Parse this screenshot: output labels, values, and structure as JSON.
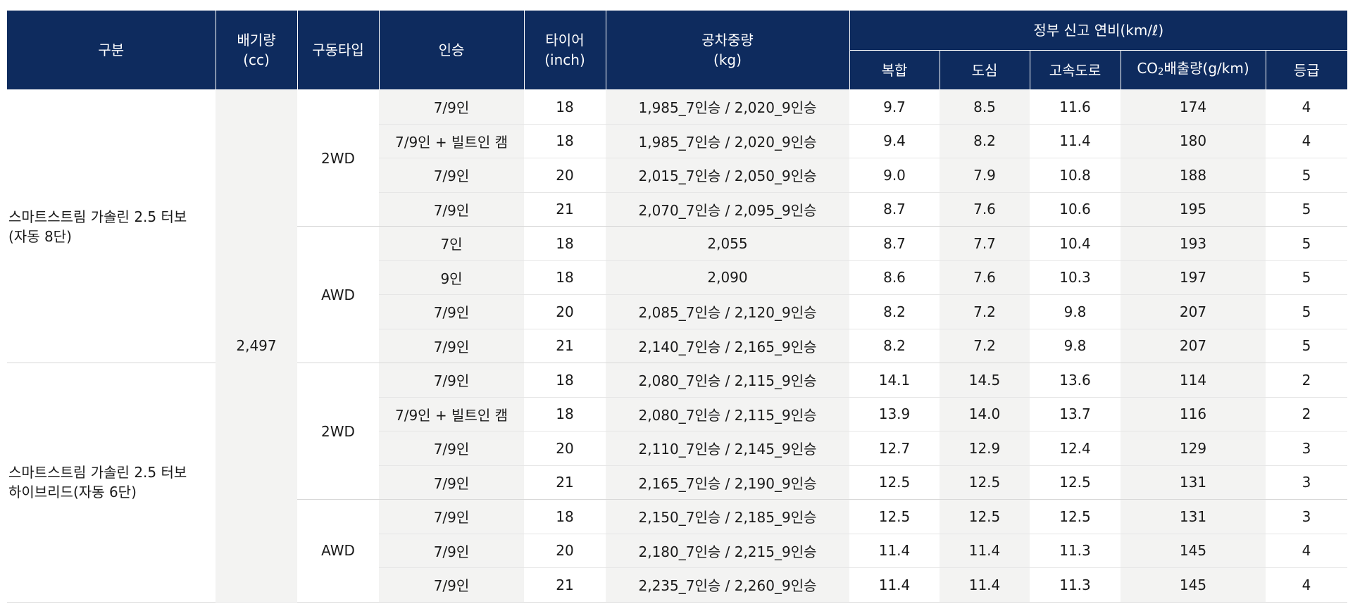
{
  "header": {
    "category": "구분",
    "displacement": "배기량\n(cc)",
    "drive": "구동타입",
    "seats": "인승",
    "tire": "타이어\n(inch)",
    "weight": "공차중량\n(kg)",
    "efficiency_group": "정부 신고 연비(km/ℓ)",
    "combined": "복합",
    "city": "도심",
    "highway": "고속도로",
    "co2_prefix": "CO",
    "co2_sub": "2",
    "co2_suffix": "배출량(g/km)",
    "grade": "등급"
  },
  "displacement_value": "2,497",
  "groups": [
    {
      "category": "스마트스트림 가솔린 2.5 터보\n(자동 8단)",
      "drives": [
        {
          "drive": "2WD",
          "rows": [
            {
              "seats": "7/9인",
              "tire": "18",
              "weight": "1,985_7인승 / 2,020_9인승",
              "combined": "9.7",
              "city": "8.5",
              "highway": "11.6",
              "co2": "174",
              "grade": "4"
            },
            {
              "seats": "7/9인 + 빌트인 캠",
              "tire": "18",
              "weight": "1,985_7인승 / 2,020_9인승",
              "combined": "9.4",
              "city": "8.2",
              "highway": "11.4",
              "co2": "180",
              "grade": "4"
            },
            {
              "seats": "7/9인",
              "tire": "20",
              "weight": "2,015_7인승 / 2,050_9인승",
              "combined": "9.0",
              "city": "7.9",
              "highway": "10.8",
              "co2": "188",
              "grade": "5"
            },
            {
              "seats": "7/9인",
              "tire": "21",
              "weight": "2,070_7인승 / 2,095_9인승",
              "combined": "8.7",
              "city": "7.6",
              "highway": "10.6",
              "co2": "195",
              "grade": "5"
            }
          ]
        },
        {
          "drive": "AWD",
          "rows": [
            {
              "seats": "7인",
              "tire": "18",
              "weight": "2,055",
              "combined": "8.7",
              "city": "7.7",
              "highway": "10.4",
              "co2": "193",
              "grade": "5"
            },
            {
              "seats": "9인",
              "tire": "18",
              "weight": "2,090",
              "combined": "8.6",
              "city": "7.6",
              "highway": "10.3",
              "co2": "197",
              "grade": "5"
            },
            {
              "seats": "7/9인",
              "tire": "20",
              "weight": "2,085_7인승 / 2,120_9인승",
              "combined": "8.2",
              "city": "7.2",
              "highway": "9.8",
              "co2": "207",
              "grade": "5"
            },
            {
              "seats": "7/9인",
              "tire": "21",
              "weight": "2,140_7인승 / 2,165_9인승",
              "combined": "8.2",
              "city": "7.2",
              "highway": "9.8",
              "co2": "207",
              "grade": "5"
            }
          ]
        }
      ]
    },
    {
      "category": "스마트스트림 가솔린 2.5 터보\n하이브리드(자동 6단)",
      "drives": [
        {
          "drive": "2WD",
          "rows": [
            {
              "seats": "7/9인",
              "tire": "18",
              "weight": "2,080_7인승 / 2,115_9인승",
              "combined": "14.1",
              "city": "14.5",
              "highway": "13.6",
              "co2": "114",
              "grade": "2"
            },
            {
              "seats": "7/9인 + 빌트인 캠",
              "tire": "18",
              "weight": "2,080_7인승 / 2,115_9인승",
              "combined": "13.9",
              "city": "14.0",
              "highway": "13.7",
              "co2": "116",
              "grade": "2"
            },
            {
              "seats": "7/9인",
              "tire": "20",
              "weight": "2,110_7인승 / 2,145_9인승",
              "combined": "12.7",
              "city": "12.9",
              "highway": "12.4",
              "co2": "129",
              "grade": "3"
            },
            {
              "seats": "7/9인",
              "tire": "21",
              "weight": "2,165_7인승 / 2,190_9인승",
              "combined": "12.5",
              "city": "12.5",
              "highway": "12.5",
              "co2": "131",
              "grade": "3"
            }
          ]
        },
        {
          "drive": "AWD",
          "rows": [
            {
              "seats": "7/9인",
              "tire": "18",
              "weight": "2,150_7인승 / 2,185_9인승",
              "combined": "12.5",
              "city": "12.5",
              "highway": "12.5",
              "co2": "131",
              "grade": "3"
            },
            {
              "seats": "7/9인",
              "tire": "20",
              "weight": "2,180_7인승 / 2,215_9인승",
              "combined": "11.4",
              "city": "11.4",
              "highway": "11.3",
              "co2": "145",
              "grade": "4"
            },
            {
              "seats": "7/9인",
              "tire": "21",
              "weight": "2,235_7인승 / 2,260_9인승",
              "combined": "11.4",
              "city": "11.4",
              "highway": "11.3",
              "co2": "145",
              "grade": "4"
            }
          ]
        }
      ]
    }
  ]
}
